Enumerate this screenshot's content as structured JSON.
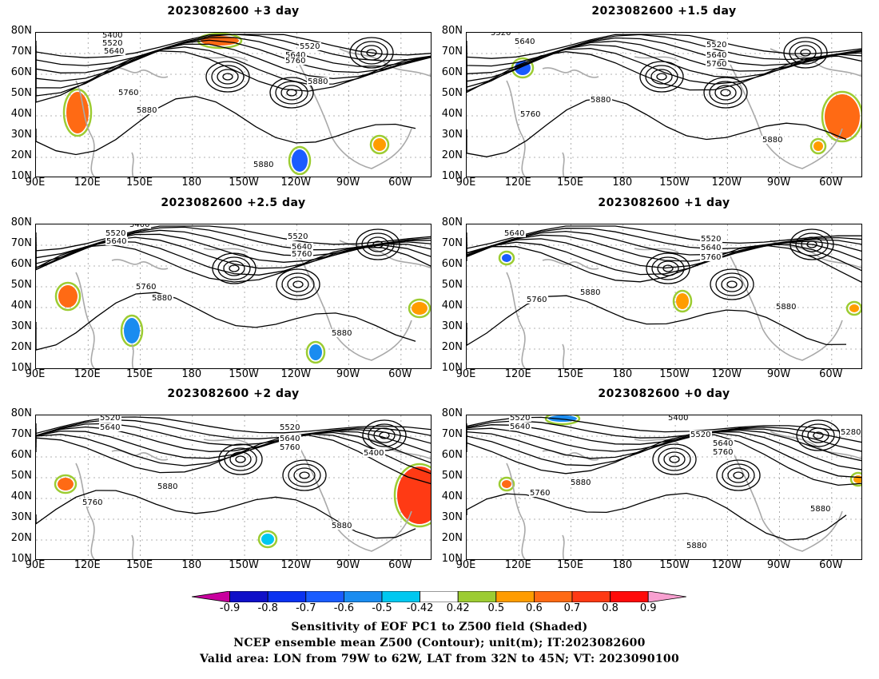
{
  "panels": [
    {
      "title": "2023082600 +3 day",
      "contour_labels": [
        "5400",
        "5520",
        "5640",
        "5520",
        "5640",
        "5760",
        "5880",
        "5760",
        "5880",
        "5880"
      ]
    },
    {
      "title": "2023082600 +1.5 day",
      "contour_labels": [
        "5520",
        "5640",
        "5520",
        "5640",
        "5760",
        "5880",
        "5760",
        "5880"
      ]
    },
    {
      "title": "2023082600 +2.5 day",
      "contour_labels": [
        "5400",
        "5520",
        "5640",
        "5520",
        "5640",
        "5760",
        "5760",
        "5880",
        "5880"
      ]
    },
    {
      "title": "2023082600 +1 day",
      "contour_labels": [
        "5640",
        "5520",
        "5640",
        "5760",
        "5760",
        "5880",
        "5880"
      ]
    },
    {
      "title": "2023082600 +2 day",
      "contour_labels": [
        "5520",
        "5640",
        "5520",
        "5640",
        "5760",
        "5400",
        "5880",
        "5760",
        "5880"
      ]
    },
    {
      "title": "2023082600 +0 day",
      "contour_labels": [
        "5520",
        "5640",
        "5400",
        "5280",
        "5520",
        "5640",
        "5760",
        "5880",
        "5760",
        "5880",
        "5880"
      ]
    }
  ],
  "lat_labels": [
    "80N",
    "70N",
    "60N",
    "50N",
    "40N",
    "30N",
    "20N",
    "10N"
  ],
  "lon_labels": [
    "90E",
    "120E",
    "150E",
    "180",
    "150W",
    "120W",
    "90W",
    "60W"
  ],
  "colorbar": {
    "ticks": [
      "-0.9",
      "-0.8",
      "-0.7",
      "-0.6",
      "-0.5",
      "-0.42",
      "0.42",
      "0.5",
      "0.6",
      "0.7",
      "0.8",
      "0.9"
    ],
    "colors": [
      "#c8009e",
      "#1010c8",
      "#0a32f0",
      "#1a5cff",
      "#1a8cf0",
      "#00c8f0",
      "#ffffff",
      "#9ccc32",
      "#ff9c00",
      "#ff6a14",
      "#ff3a14",
      "#ff0a0a",
      "#f8a0d0"
    ]
  },
  "caption": {
    "line1": "Sensitivity of EOF PC1 to Z500 field (Shaded)",
    "line2": "NCEP ensemble mean Z500 (Contour); unit(m); IT:2023082600",
    "line3": "Valid area: LON from 79W to 62W, LAT from 32N to 45N; VT: 2023090100"
  }
}
